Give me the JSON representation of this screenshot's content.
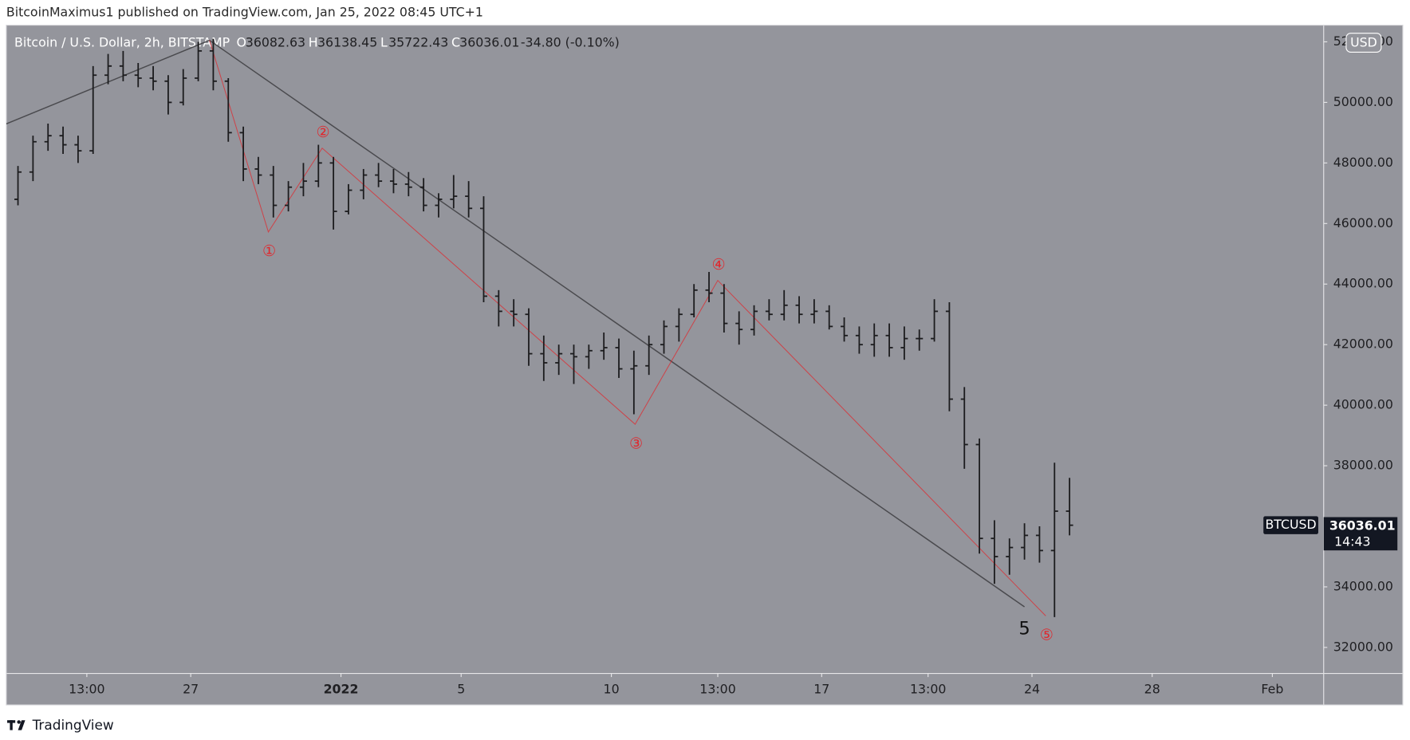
{
  "header": {
    "text": "BitcoinMaximus1 published on TradingView.com, Jan 25, 2022 08:45 UTC+1"
  },
  "footer": {
    "brand": "TradingView"
  },
  "chart_data": {
    "type": "ohlc",
    "title": "Bitcoin / U.S. Dollar, 2h, BITSTAMP",
    "legend": {
      "o_label": "O",
      "o": "36082.63",
      "h_label": "H",
      "h": "36138.45",
      "l_label": "L",
      "l": "35722.43",
      "c_label": "C",
      "c": "36036.01",
      "change": "-34.80 (-0.10%)"
    },
    "currency": "USD",
    "symbol": "BTCUSD",
    "countdown": "14:43",
    "color": "#1c1c1e",
    "grid": false,
    "x": [
      "2021-12-21T06:00",
      "2021-12-21T18:00",
      "2021-12-22T06:00",
      "2021-12-22T18:00",
      "2021-12-23T06:00",
      "2021-12-23T18:00",
      "2021-12-24T06:00",
      "2021-12-24T18:00",
      "2021-12-25T06:00",
      "2021-12-25T18:00",
      "2021-12-26T06:00",
      "2021-12-26T18:00",
      "2021-12-27T06:00",
      "2021-12-27T18:00",
      "2021-12-28T06:00",
      "2021-12-28T18:00",
      "2021-12-29T06:00",
      "2021-12-29T18:00",
      "2021-12-30T06:00",
      "2021-12-30T18:00",
      "2021-12-31T06:00",
      "2021-12-31T18:00",
      "2022-01-01T06:00",
      "2022-01-01T18:00",
      "2022-01-02T06:00",
      "2022-01-02T18:00",
      "2022-01-03T06:00",
      "2022-01-03T18:00",
      "2022-01-04T06:00",
      "2022-01-04T18:00",
      "2022-01-05T06:00",
      "2022-01-05T18:00",
      "2022-01-06T06:00",
      "2022-01-06T18:00",
      "2022-01-07T06:00",
      "2022-01-07T18:00",
      "2022-01-08T06:00",
      "2022-01-08T18:00",
      "2022-01-09T06:00",
      "2022-01-09T18:00",
      "2022-01-10T06:00",
      "2022-01-10T18:00",
      "2022-01-11T06:00",
      "2022-01-11T18:00",
      "2022-01-12T06:00",
      "2022-01-12T18:00",
      "2022-01-13T06:00",
      "2022-01-13T18:00",
      "2022-01-14T06:00",
      "2022-01-14T18:00",
      "2022-01-15T06:00",
      "2022-01-15T18:00",
      "2022-01-16T06:00",
      "2022-01-16T18:00",
      "2022-01-17T06:00",
      "2022-01-17T18:00",
      "2022-01-18T06:00",
      "2022-01-18T18:00",
      "2022-01-19T06:00",
      "2022-01-19T18:00",
      "2022-01-20T06:00",
      "2022-01-20T18:00",
      "2022-01-21T06:00",
      "2022-01-21T18:00",
      "2022-01-22T06:00",
      "2022-01-22T18:00",
      "2022-01-23T06:00",
      "2022-01-23T18:00",
      "2022-01-24T06:00",
      "2022-01-24T18:00",
      "2022-01-25T06:00"
    ],
    "open": [
      46800,
      47700,
      48700,
      48900,
      48600,
      48400,
      50900,
      51200,
      50900,
      50800,
      50700,
      50000,
      50800,
      51700,
      50700,
      49000,
      47800,
      47600,
      46600,
      47200,
      47400,
      48000,
      46400,
      47100,
      47600,
      47400,
      47300,
      47200,
      46600,
      46800,
      46900,
      46500,
      43600,
      43100,
      43000,
      41700,
      41400,
      41700,
      41600,
      41800,
      41900,
      41200,
      41300,
      42000,
      42600,
      43000,
      43800,
      43700,
      42700,
      42500,
      43100,
      43000,
      43300,
      43000,
      43100,
      42600,
      42300,
      42000,
      42300,
      41900,
      42200,
      42200,
      43100,
      40200,
      38700,
      35600,
      35000,
      35300,
      35700,
      35200,
      36500
    ],
    "high": [
      47900,
      48900,
      49300,
      49200,
      48900,
      51200,
      51600,
      51700,
      51300,
      51200,
      50900,
      51100,
      52000,
      52100,
      50800,
      49200,
      48200,
      47900,
      47400,
      48000,
      48600,
      48200,
      47300,
      47800,
      48000,
      47800,
      47700,
      47500,
      47000,
      47600,
      47400,
      46900,
      43800,
      43500,
      43200,
      42300,
      42000,
      42000,
      42000,
      42400,
      42200,
      41800,
      42300,
      42800,
      43200,
      44000,
      44400,
      44000,
      43100,
      43300,
      43500,
      43800,
      43600,
      43500,
      43300,
      42900,
      42600,
      42700,
      42700,
      42600,
      42500,
      43500,
      43400,
      40600,
      38900,
      36200,
      35600,
      36100,
      36000,
      38100,
      37600
    ],
    "low": [
      46600,
      47400,
      48400,
      48300,
      48000,
      48300,
      50600,
      50700,
      50500,
      50400,
      49600,
      49900,
      50700,
      50400,
      48700,
      47400,
      47300,
      46200,
      46400,
      46900,
      47200,
      45800,
      46300,
      46800,
      47200,
      47000,
      46900,
      46400,
      46200,
      46500,
      46200,
      43400,
      42600,
      42600,
      41300,
      40800,
      41000,
      40700,
      41200,
      41500,
      40900,
      39700,
      41000,
      41700,
      42100,
      42900,
      43400,
      42400,
      42000,
      42300,
      42800,
      42800,
      42700,
      42700,
      42500,
      42100,
      41700,
      41600,
      41600,
      41500,
      41800,
      42100,
      39800,
      37900,
      35100,
      34100,
      34400,
      34900,
      34800,
      33000,
      35700
    ],
    "close": [
      47700,
      48700,
      48900,
      48600,
      48400,
      50900,
      51200,
      50900,
      50800,
      50700,
      50000,
      50800,
      51700,
      50700,
      49000,
      47800,
      47600,
      46600,
      47200,
      47400,
      48000,
      46400,
      47100,
      47600,
      47400,
      47300,
      47200,
      46600,
      46800,
      46900,
      46500,
      43600,
      43100,
      43000,
      41700,
      41400,
      41700,
      41600,
      41800,
      41900,
      41200,
      41300,
      42000,
      42600,
      43000,
      43800,
      43700,
      42700,
      42500,
      43100,
      43000,
      43300,
      43000,
      43100,
      42600,
      42300,
      42000,
      42300,
      41900,
      42200,
      42200,
      43100,
      40200,
      38700,
      35600,
      35000,
      35300,
      35700,
      35200,
      36500,
      36036.01
    ],
    "xlim": [
      "2021-12-20T20:40",
      "2022-02-02T17:00"
    ],
    "xticks": [
      {
        "value": "2021-12-23T13:00",
        "label": "13:00"
      },
      {
        "value": "2021-12-27T00:00",
        "label": "27"
      },
      {
        "value": "2022-01-01T00:00",
        "label": "2022"
      },
      {
        "value": "2022-01-05T00:00",
        "label": "5"
      },
      {
        "value": "2022-01-10T00:00",
        "label": "10"
      },
      {
        "value": "2022-01-13T13:00",
        "label": "13:00"
      },
      {
        "value": "2022-01-17T00:00",
        "label": "17"
      },
      {
        "value": "2022-01-20T13:00",
        "label": "13:00"
      },
      {
        "value": "2022-01-24T00:00",
        "label": "24"
      },
      {
        "value": "2022-01-28T00:00",
        "label": "28"
      },
      {
        "value": "2022-02-01T00:00",
        "label": "Feb"
      }
    ],
    "ylim": [
      31140,
      52550
    ],
    "yticks": [
      {
        "value": 32000,
        "label": "32000.00"
      },
      {
        "value": 34000,
        "label": "34000.00"
      },
      {
        "value": 36000,
        "label": "36000.00"
      },
      {
        "value": 38000,
        "label": "38000.00"
      },
      {
        "value": 40000,
        "label": "40000.00"
      },
      {
        "value": 42000,
        "label": "42000.00"
      },
      {
        "value": 44000,
        "label": "44000.00"
      },
      {
        "value": 46000,
        "label": "46000.00"
      },
      {
        "value": 48000,
        "label": "48000.00"
      },
      {
        "value": 50000,
        "label": "50000.00"
      },
      {
        "value": 52000,
        "label": "52000.00"
      }
    ],
    "trendlines": [
      {
        "color": "#4a4a4e",
        "x": [
          "2021-12-20T20:40",
          "2021-12-27T15:00"
        ],
        "y": [
          49290,
          52050
        ]
      },
      {
        "color": "#4a4a4e",
        "x": [
          "2021-12-27T15:00",
          "2022-01-23T18:00"
        ],
        "y": [
          52050,
          33340
        ]
      }
    ],
    "waves": {
      "color": "#e0282e",
      "x": [
        "2021-12-27T15:00",
        "2021-12-29T14:00",
        "2021-12-31T09:00",
        "2022-01-10T19:00",
        "2022-01-13T13:00",
        "2022-01-24T11:00"
      ],
      "y": [
        52050,
        45720,
        48490,
        39370,
        44120,
        33040
      ],
      "labels": [
        null,
        "①",
        "②",
        "③",
        "④",
        "⑤"
      ]
    },
    "annotations": [
      {
        "text": "5",
        "x": "2022-01-23T18:00",
        "y": 32600
      }
    ]
  }
}
